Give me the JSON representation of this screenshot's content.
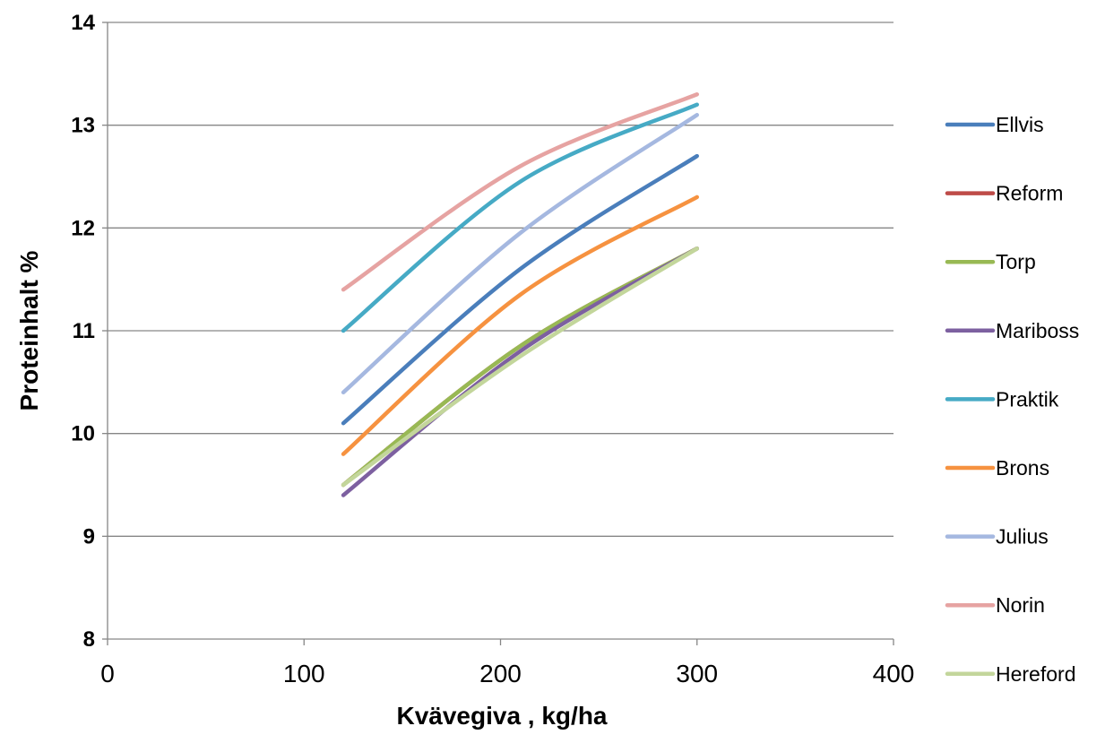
{
  "chart_data": {
    "type": "line",
    "title": "",
    "xlabel": "Kvävegiva , kg/ha",
    "ylabel": "Proteinhalt %",
    "xlim": [
      0,
      400
    ],
    "ylim": [
      8,
      14
    ],
    "xticks": [
      0,
      100,
      200,
      300,
      400
    ],
    "yticks": [
      8,
      9,
      10,
      11,
      12,
      13,
      14
    ],
    "grid": "horizontal",
    "legend_position": "right",
    "x": [
      120,
      210,
      300
    ],
    "series": [
      {
        "name": "Ellvis",
        "color": "#4a7ebb",
        "x": [
          120,
          210,
          300
        ],
        "y": [
          10.1,
          11.6,
          12.7
        ]
      },
      {
        "name": "Reform",
        "color": "#be4b48",
        "x": [
          120,
          210,
          300
        ],
        "y": [
          9.5,
          10.85,
          11.8
        ]
      },
      {
        "name": "Torp",
        "color": "#98b954",
        "x": [
          120,
          210,
          300
        ],
        "y": [
          9.5,
          10.85,
          11.8
        ]
      },
      {
        "name": "Mariboss",
        "color": "#7d60a0",
        "x": [
          120,
          210,
          300
        ],
        "y": [
          9.4,
          10.8,
          11.8
        ]
      },
      {
        "name": "Praktik",
        "color": "#46aac5",
        "x": [
          120,
          210,
          300
        ],
        "y": [
          11.0,
          12.45,
          13.2
        ]
      },
      {
        "name": "Brons",
        "color": "#f69240",
        "x": [
          120,
          210,
          300
        ],
        "y": [
          9.8,
          11.35,
          12.3
        ]
      },
      {
        "name": "Julius",
        "color": "#a5b8e0",
        "x": [
          120,
          210,
          300
        ],
        "y": [
          10.4,
          11.95,
          13.1
        ]
      },
      {
        "name": "Norin",
        "color": "#e6a3a2",
        "x": [
          120,
          210,
          300
        ],
        "y": [
          11.4,
          12.6,
          13.3
        ]
      },
      {
        "name": "Hereford",
        "color": "#c3d69b",
        "x": [
          120,
          210,
          300
        ],
        "y": [
          9.5,
          10.75,
          11.8
        ]
      }
    ]
  }
}
